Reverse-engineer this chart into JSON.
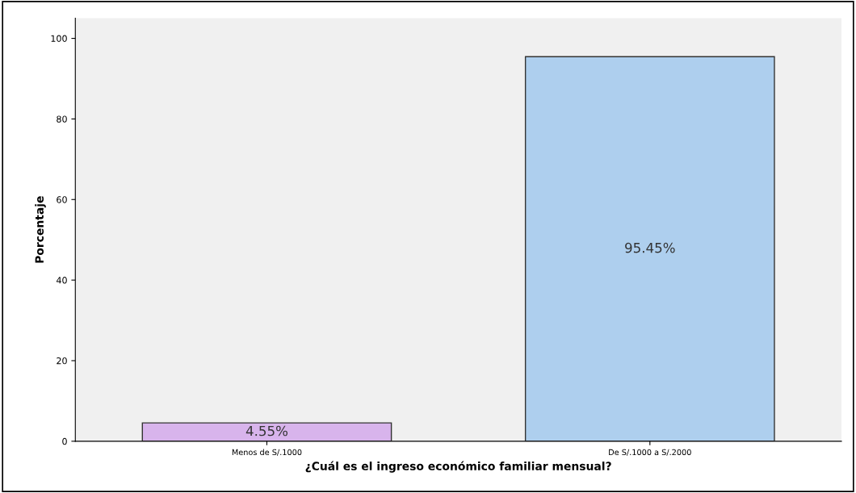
{
  "chart_data": {
    "type": "bar",
    "xlabel": "¿Cuál es el ingreso económico familiar mensual?",
    "ylabel": "Porcentaje",
    "categories": [
      "Menos de S/.1000",
      "De S/.1000 a S/.2000"
    ],
    "values": [
      4.55,
      95.45
    ],
    "colors": [
      "#d8b4ec",
      "#aecfee"
    ],
    "value_labels": [
      "4.55%",
      "95.45%"
    ],
    "ylim": [
      0,
      105
    ],
    "yticks": [
      0,
      20,
      40,
      60,
      80,
      100
    ],
    "grid": false
  }
}
